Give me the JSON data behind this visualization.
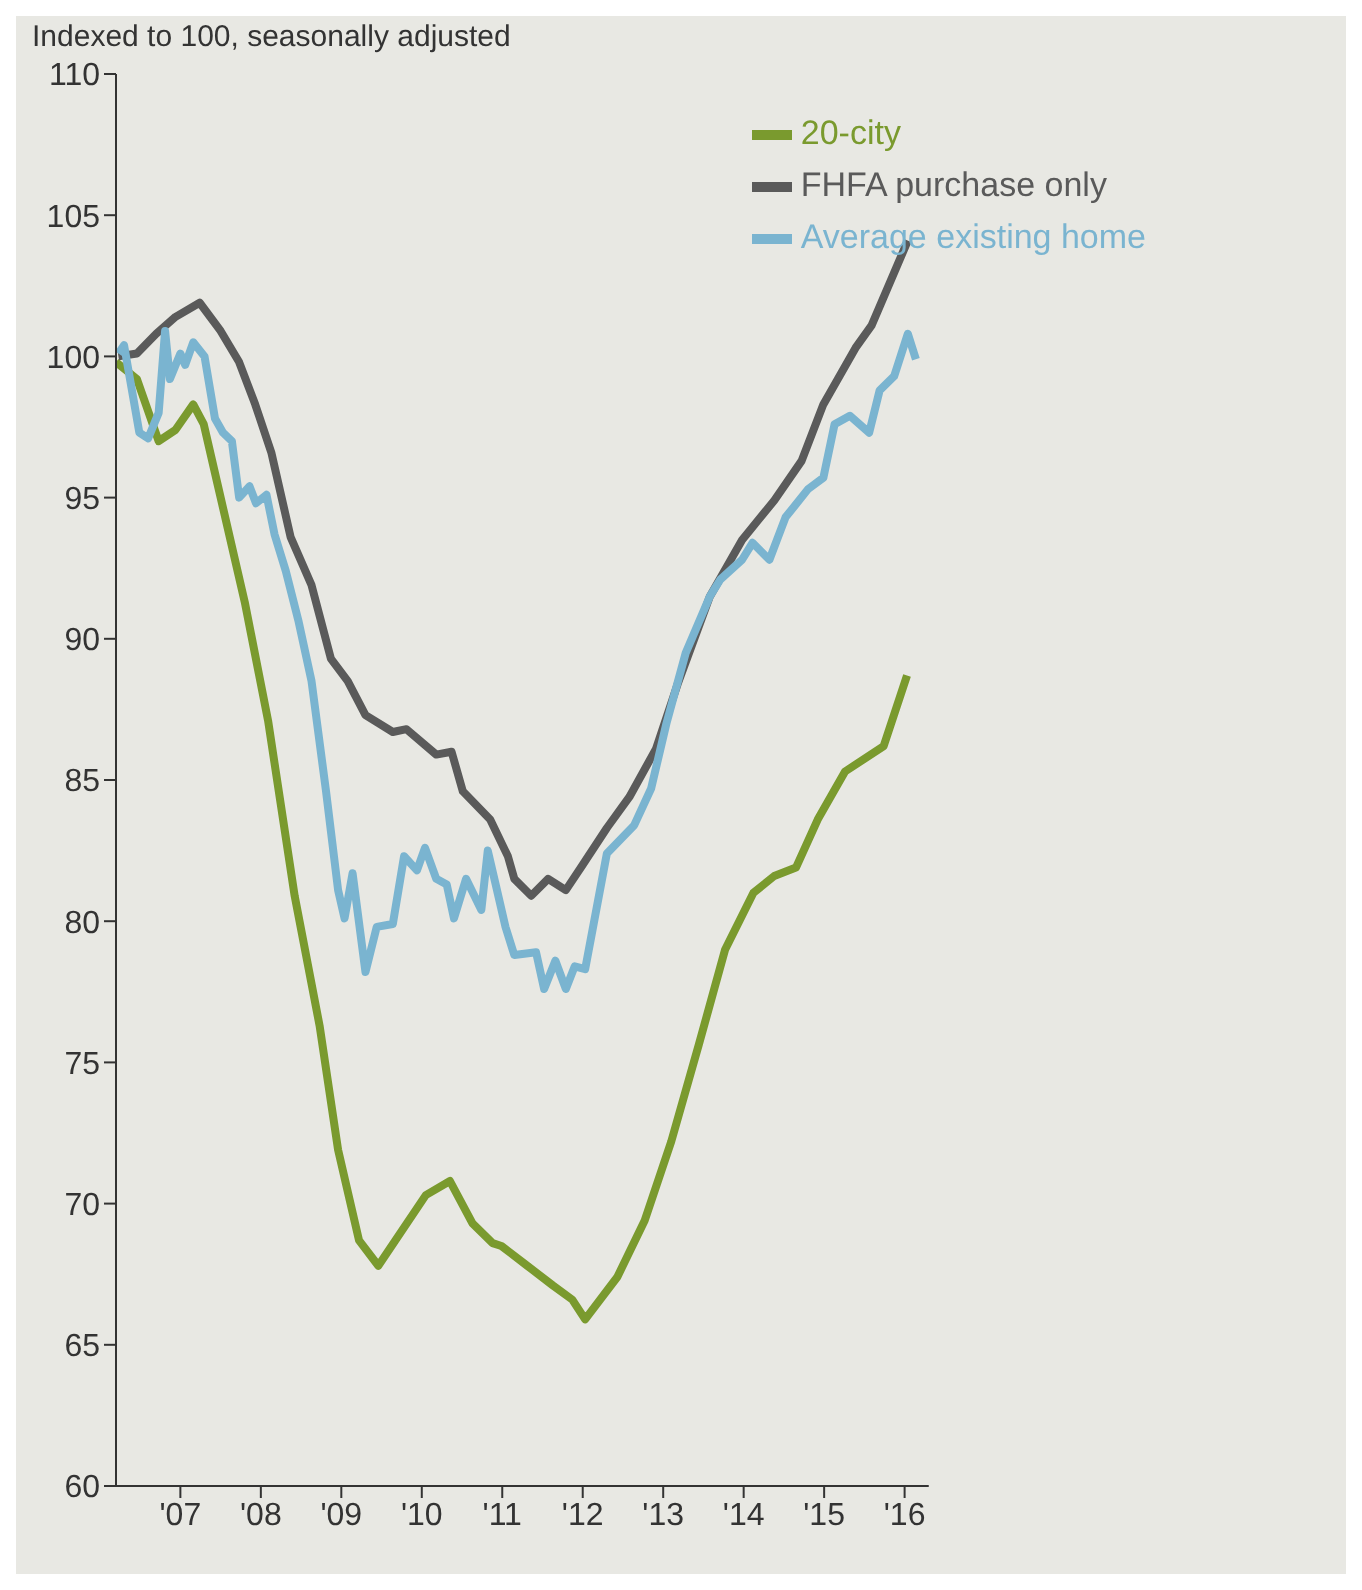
{
  "chart_data": {
    "type": "line",
    "subtitle": "Indexed to 100, seasonally adjusted",
    "xlim": [
      2006.2,
      2016.3
    ],
    "xticks": [
      {
        "value": 2007,
        "label": "'07"
      },
      {
        "value": 2008,
        "label": "'08"
      },
      {
        "value": 2009,
        "label": "'09"
      },
      {
        "value": 2010,
        "label": "'10"
      },
      {
        "value": 2011,
        "label": "'11"
      },
      {
        "value": 2012,
        "label": "'12"
      },
      {
        "value": 2013,
        "label": "'13"
      },
      {
        "value": 2014,
        "label": "'14"
      },
      {
        "value": 2015,
        "label": "'15"
      },
      {
        "value": 2016,
        "label": "'16"
      }
    ],
    "ylim": [
      60,
      110
    ],
    "yticks": [
      60,
      65,
      70,
      75,
      80,
      85,
      90,
      95,
      100,
      105,
      110
    ],
    "grid": false,
    "legend": "top right",
    "marker": "none",
    "line_style": "solid",
    "series": [
      {
        "name": "20-city",
        "color": "#7a9a2e",
        "x": [
          2006.2,
          2006.46,
          2006.73,
          2006.94,
          2007.16,
          2007.29,
          2007.46,
          2007.8,
          2008.09,
          2008.42,
          2008.73,
          2008.96,
          2009.22,
          2009.46,
          2010.05,
          2010.35,
          2010.63,
          2010.88,
          2010.99,
          2011.31,
          2011.63,
          2011.87,
          2012.03,
          2012.43,
          2012.77,
          2013.1,
          2013.44,
          2013.77,
          2014.12,
          2014.38,
          2014.65,
          2014.92,
          2015.26,
          2015.74,
          2016.03
        ],
        "values": [
          99.8,
          99.2,
          97.0,
          97.4,
          98.3,
          97.6,
          95.5,
          91.3,
          87.1,
          80.9,
          76.3,
          71.9,
          68.7,
          67.8,
          70.3,
          70.8,
          69.3,
          68.6,
          68.5,
          67.8,
          67.1,
          66.6,
          65.9,
          67.4,
          69.4,
          72.2,
          75.6,
          79.0,
          81.0,
          81.6,
          81.9,
          83.6,
          85.3,
          86.2,
          88.7
        ]
      },
      {
        "name": "FHFA purchase only",
        "color": "#5a5a5a",
        "x": [
          2006.23,
          2006.46,
          2006.7,
          2006.94,
          2007.24,
          2007.5,
          2007.73,
          2007.93,
          2008.13,
          2008.37,
          2008.63,
          2008.87,
          2009.08,
          2009.3,
          2009.64,
          2009.81,
          2010.18,
          2010.37,
          2010.51,
          2010.85,
          2011.07,
          2011.15,
          2011.36,
          2011.57,
          2011.79,
          2012.0,
          2012.3,
          2012.58,
          2012.91,
          2013.18,
          2013.58,
          2013.98,
          2014.38,
          2014.72,
          2014.99,
          2015.39,
          2015.59,
          2016.04
        ],
        "values": [
          100.0,
          100.1,
          100.8,
          101.4,
          101.9,
          100.9,
          99.8,
          98.3,
          96.6,
          93.6,
          91.9,
          89.3,
          88.5,
          87.3,
          86.7,
          86.8,
          85.9,
          86.0,
          84.6,
          83.6,
          82.3,
          81.5,
          80.9,
          81.5,
          81.1,
          82.0,
          83.3,
          84.4,
          86.1,
          88.4,
          91.5,
          93.5,
          94.9,
          96.3,
          98.3,
          100.3,
          101.1,
          104.1
        ]
      },
      {
        "name": "Average existing home",
        "color": "#7ab4d0",
        "x": [
          2006.23,
          2006.3,
          2006.49,
          2006.6,
          2006.73,
          2006.81,
          2006.87,
          2007.0,
          2007.06,
          2007.16,
          2007.3,
          2007.43,
          2007.53,
          2007.64,
          2007.73,
          2007.86,
          2007.94,
          2008.07,
          2008.17,
          2008.31,
          2008.47,
          2008.63,
          2008.81,
          2008.96,
          2009.04,
          2009.14,
          2009.3,
          2009.44,
          2009.64,
          2009.78,
          2009.94,
          2010.04,
          2010.18,
          2010.31,
          2010.4,
          2010.55,
          2010.74,
          2010.82,
          2010.91,
          2011.04,
          2011.15,
          2011.42,
          2011.52,
          2011.66,
          2011.79,
          2011.9,
          2012.03,
          2012.3,
          2012.64,
          2012.85,
          2013.04,
          2013.28,
          2013.58,
          2013.71,
          2013.98,
          2014.11,
          2014.32,
          2014.52,
          2014.8,
          2014.99,
          2015.13,
          2015.32,
          2015.56,
          2015.69,
          2015.87,
          2016.04,
          2016.14
        ],
        "values": [
          100.1,
          100.4,
          97.3,
          97.1,
          98.0,
          100.9,
          99.2,
          100.1,
          99.7,
          100.5,
          100.0,
          97.8,
          97.3,
          97.0,
          95.0,
          95.4,
          94.8,
          95.1,
          93.7,
          92.4,
          90.6,
          88.5,
          84.6,
          81.1,
          80.1,
          81.7,
          78.2,
          79.8,
          79.9,
          82.3,
          81.8,
          82.6,
          81.5,
          81.3,
          80.1,
          81.5,
          80.4,
          82.5,
          81.4,
          79.8,
          78.8,
          78.9,
          77.6,
          78.6,
          77.6,
          78.4,
          78.3,
          82.4,
          83.4,
          84.7,
          87.0,
          89.5,
          91.5,
          92.1,
          92.8,
          93.4,
          92.8,
          94.3,
          95.3,
          95.7,
          97.6,
          97.9,
          97.3,
          98.8,
          99.3,
          100.8,
          99.9
        ]
      }
    ]
  }
}
